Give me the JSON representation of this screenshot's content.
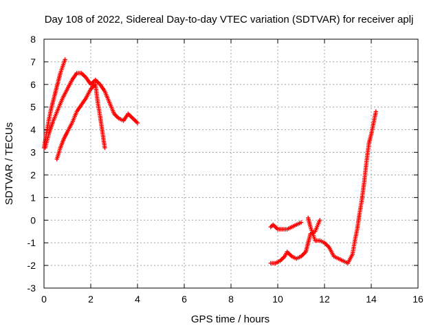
{
  "chart_data": {
    "type": "scatter",
    "title": "Day 108 of 2022, Sidereal Day-to-day VTEC variation (SDTVAR) for receiver aplj",
    "xlabel": "GPS time / hours",
    "ylabel": "SDTVAR / TECUs",
    "xlim": [
      0,
      16
    ],
    "ylim": [
      -3,
      8
    ],
    "xticks": [
      0,
      2,
      4,
      6,
      8,
      10,
      12,
      14,
      16
    ],
    "yticks": [
      -3,
      -2,
      -1,
      0,
      1,
      2,
      3,
      4,
      5,
      6,
      7,
      8
    ],
    "grid": true,
    "legend": "none",
    "marker": "+",
    "color": "#ff0000",
    "series": [
      {
        "name": "SDTVAR",
        "segments": [
          {
            "x": [
              0.0,
              0.1,
              0.2,
              0.3,
              0.4,
              0.5,
              0.6,
              0.7,
              0.8,
              0.9
            ],
            "y": [
              3.2,
              3.8,
              4.4,
              4.9,
              5.3,
              5.7,
              6.1,
              6.5,
              6.8,
              7.1
            ]
          },
          {
            "x": [
              0.55,
              0.7,
              0.85,
              1.0,
              1.2,
              1.4,
              1.6,
              1.8,
              2.0,
              2.2,
              2.3,
              2.4,
              2.5,
              2.6
            ],
            "y": [
              2.7,
              3.2,
              3.6,
              3.9,
              4.3,
              4.8,
              5.1,
              5.4,
              5.8,
              6.0,
              5.2,
              4.6,
              3.9,
              3.2
            ]
          },
          {
            "x": [
              0.05,
              0.2,
              0.4,
              0.6,
              0.8,
              1.0,
              1.2,
              1.4,
              1.6,
              1.8,
              2.0,
              2.2,
              2.4,
              2.6,
              2.8,
              3.0,
              3.2,
              3.4,
              3.6,
              3.8,
              4.0
            ],
            "y": [
              3.2,
              3.8,
              4.4,
              4.9,
              5.4,
              5.8,
              6.2,
              6.5,
              6.5,
              6.3,
              6.0,
              6.2,
              6.0,
              5.7,
              5.2,
              4.7,
              4.5,
              4.4,
              4.7,
              4.5,
              4.3
            ]
          },
          {
            "x": [
              9.7,
              9.8,
              9.9,
              10.0,
              10.2,
              10.4,
              10.6,
              10.8,
              11.0
            ],
            "y": [
              -0.3,
              -0.2,
              -0.3,
              -0.4,
              -0.4,
              -0.4,
              -0.3,
              -0.2,
              -0.1
            ]
          },
          {
            "x": [
              9.7,
              9.9,
              10.1,
              10.3,
              10.4,
              10.6,
              10.8,
              11.0,
              11.2,
              11.3,
              11.4,
              11.6,
              11.8
            ],
            "y": [
              -1.9,
              -1.9,
              -1.8,
              -1.6,
              -1.4,
              -1.6,
              -1.7,
              -1.6,
              -1.4,
              -1.0,
              -0.6,
              -0.5,
              0.0
            ]
          },
          {
            "x": [
              11.3,
              11.4,
              11.5,
              11.6,
              11.8,
              12.0,
              12.2,
              12.4,
              12.6,
              12.8,
              13.0,
              13.2,
              13.3,
              13.4,
              13.5,
              13.6,
              13.7,
              13.8,
              13.9,
              14.0,
              14.1,
              14.2
            ],
            "y": [
              0.1,
              -0.3,
              -0.6,
              -0.9,
              -0.9,
              -1.0,
              -1.2,
              -1.6,
              -1.7,
              -1.8,
              -1.9,
              -1.5,
              -0.9,
              -0.4,
              0.3,
              0.9,
              1.7,
              2.6,
              3.4,
              3.8,
              4.3,
              4.8
            ]
          }
        ]
      }
    ]
  }
}
